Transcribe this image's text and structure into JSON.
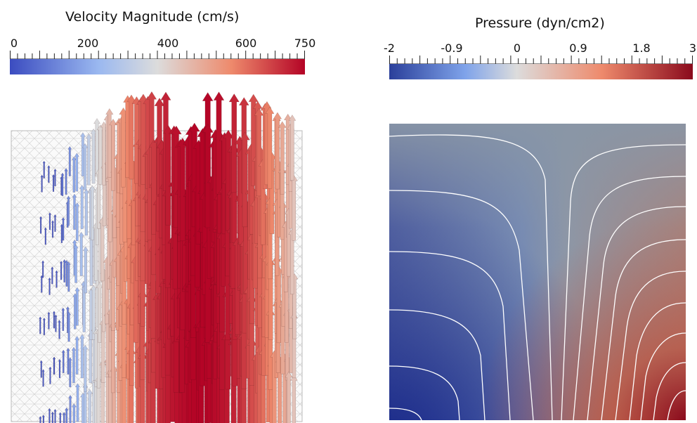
{
  "velocity_colorbar": {
    "title": "Velocity Magnitude (cm/s)",
    "tick_labels": [
      "0",
      "200",
      "400",
      "600",
      "750"
    ],
    "range": [
      0,
      750
    ],
    "colormap": [
      "#3b4cc0",
      "#b9cff5",
      "#dddcdc",
      "#ee8468",
      "#b40426"
    ]
  },
  "pressure_colorbar": {
    "title": "Pressure (dyn/cm2)",
    "tick_labels": [
      "-2",
      "-0.9",
      "0",
      "0.9",
      "1.8",
      "3"
    ],
    "range": [
      -2,
      3
    ],
    "colormap": [
      "#2a3f9a",
      "#8fb0ee",
      "#dddcdc",
      "#ee8468",
      "#8a0a1c"
    ]
  },
  "velocity_plot": {
    "mesh_color": "#c8c8c8",
    "arrow_field": "upward velocity vectors, magnitude increasing toward center"
  },
  "pressure_plot": {
    "contour_color": "#ffffff",
    "background_low": "#2b3a98",
    "background_mid": "#8f9aa8",
    "background_high": "#9a1a22"
  }
}
